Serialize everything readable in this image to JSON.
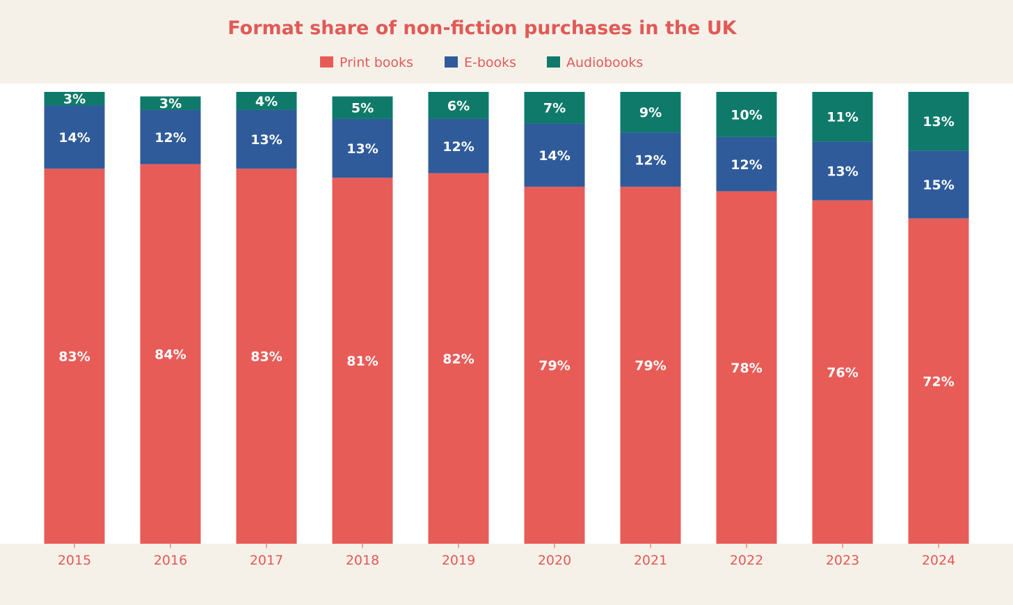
{
  "colors": {
    "background": "#f6f1e8",
    "plot_background": "#ffffff",
    "text": "#e05a57"
  },
  "chart_data": {
    "type": "bar",
    "stacked": true,
    "title": "Format share of non-fiction purchases in the UK",
    "xlabel": "",
    "ylabel": "",
    "ylim": [
      0,
      100
    ],
    "grid": false,
    "legend_position": "top-center",
    "categories": [
      "2015",
      "2016",
      "2017",
      "2018",
      "2019",
      "2020",
      "2021",
      "2022",
      "2023",
      "2024"
    ],
    "series": [
      {
        "name": "Print books",
        "color": "#e85c58",
        "values": [
          83,
          84,
          83,
          81,
          82,
          79,
          79,
          78,
          76,
          72
        ],
        "labels": [
          "83%",
          "84%",
          "83%",
          "81%",
          "82%",
          "79%",
          "79%",
          "78%",
          "76%",
          "72%"
        ]
      },
      {
        "name": "E-books",
        "color": "#2f5b9a",
        "values": [
          14,
          12,
          13,
          13,
          12,
          14,
          12,
          12,
          13,
          15
        ],
        "labels": [
          "14%",
          "12%",
          "13%",
          "13%",
          "12%",
          "14%",
          "12%",
          "12%",
          "13%",
          "15%"
        ]
      },
      {
        "name": "Audiobooks",
        "color": "#0f7a6a",
        "values": [
          3,
          3,
          4,
          5,
          6,
          7,
          9,
          10,
          11,
          13
        ],
        "labels": [
          "3%",
          "3%",
          "4%",
          "5%",
          "6%",
          "7%",
          "9%",
          "10%",
          "11%",
          "13%"
        ]
      }
    ]
  }
}
